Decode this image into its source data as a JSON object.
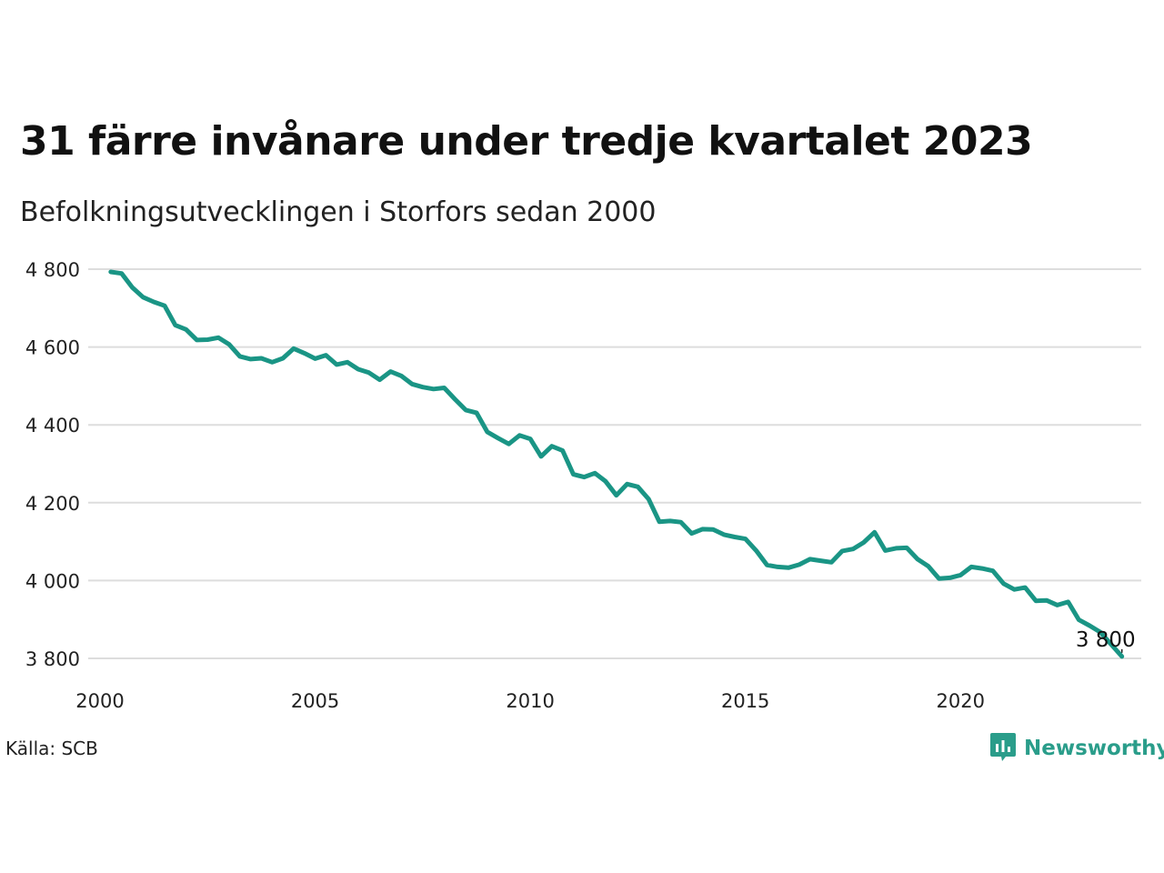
{
  "title": "31 färre invånare under tredje kvartalet 2023",
  "subtitle": "Befolkningsutvecklingen i Storfors sedan 2000",
  "source": "Källa: SCB",
  "logo": {
    "text": "Newsworthy",
    "icon": "newsworthy-logo-icon",
    "color": "#2a9d8a"
  },
  "colors": {
    "line": "#1a9585",
    "grid": "#dddddd",
    "text": "#222222"
  },
  "chart_data": {
    "type": "line",
    "title": "31 färre invånare under tredje kvartalet 2023",
    "subtitle": "Befolkningsutvecklingen i Storfors sedan 2000",
    "xlabel": "",
    "ylabel": "",
    "xlim": [
      2000,
      2024.2
    ],
    "ylim": [
      3800,
      4800
    ],
    "x_ticks": [
      2000,
      2005,
      2010,
      2015,
      2020
    ],
    "x_tick_labels": [
      "2000",
      "2005",
      "2010",
      "2015",
      "2020"
    ],
    "y_ticks": [
      3800,
      4000,
      4200,
      4400,
      4600,
      4800
    ],
    "y_tick_labels": [
      "3 800",
      "4 000",
      "4 200",
      "4 400",
      "4 600",
      "4 800"
    ],
    "grid": true,
    "end_label": "3 800",
    "series": [
      {
        "color": "#1a9585",
        "x": [
          2000.25,
          2000.5,
          2000.75,
          2001,
          2001.25,
          2001.5,
          2001.75,
          2002,
          2002.25,
          2002.5,
          2002.75,
          2003,
          2003.25,
          2003.5,
          2003.75,
          2004,
          2004.25,
          2004.5,
          2004.75,
          2005,
          2005.25,
          2005.5,
          2005.75,
          2006,
          2006.25,
          2006.5,
          2006.75,
          2007,
          2007.25,
          2007.5,
          2007.75,
          2008,
          2008.25,
          2008.5,
          2008.75,
          2009,
          2009.25,
          2009.5,
          2009.75,
          2010,
          2010.25,
          2010.5,
          2010.75,
          2011,
          2011.25,
          2011.5,
          2011.75,
          2012,
          2012.25,
          2012.5,
          2012.75,
          2013,
          2013.25,
          2013.5,
          2013.75,
          2014,
          2014.25,
          2014.5,
          2014.75,
          2015,
          2015.25,
          2015.5,
          2015.75,
          2016,
          2016.25,
          2016.5,
          2016.75,
          2017,
          2017.25,
          2017.5,
          2017.75,
          2018,
          2018.25,
          2018.5,
          2018.75,
          2019,
          2019.25,
          2019.5,
          2019.75,
          2020,
          2020.25,
          2020.5,
          2020.75,
          2021,
          2021.25,
          2021.5,
          2021.75,
          2022,
          2022.25,
          2022.5,
          2022.75,
          2023,
          2023.25,
          2023.5,
          2023.75
        ],
        "values": [
          4793,
          4789,
          4753,
          4728,
          4716,
          4706,
          4656,
          4645,
          4618,
          4619,
          4624,
          4607,
          4576,
          4569,
          4571,
          4561,
          4571,
          4596,
          4584,
          4570,
          4579,
          4555,
          4561,
          4543,
          4534,
          4516,
          4537,
          4526,
          4505,
          4497,
          4492,
          4495,
          4466,
          4438,
          4431,
          4382,
          4366,
          4351,
          4373,
          4364,
          4319,
          4345,
          4334,
          4273,
          4266,
          4276,
          4255,
          4219,
          4248,
          4241,
          4209,
          4151,
          4153,
          4150,
          4121,
          4132,
          4131,
          4118,
          4112,
          4107,
          4077,
          4040,
          4035,
          4033,
          4041,
          4055,
          4051,
          4047,
          4076,
          4081,
          4098,
          4124,
          4077,
          4083,
          4084,
          4055,
          4037,
          4005,
          4007,
          4014,
          4035,
          4031,
          4025,
          3992,
          3977,
          3982,
          3948,
          3949,
          3937,
          3945,
          3899,
          3884,
          3867,
          3836,
          3805
        ]
      }
    ]
  }
}
